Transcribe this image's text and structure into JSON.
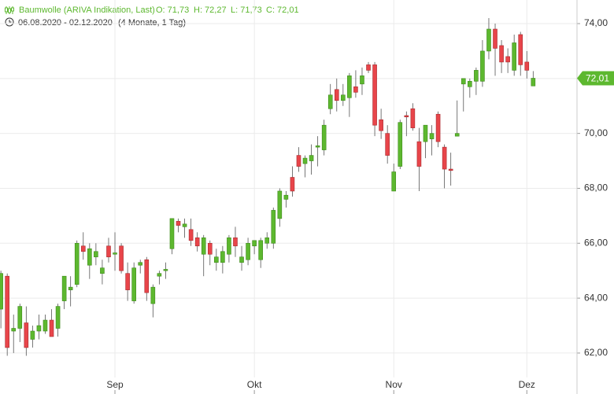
{
  "chart_data": {
    "type": "candlestick",
    "title": "Baumwolle (ARIVA Indikation, Last)",
    "ohlc_labels": [
      "O: 71,73",
      "H: 72,27",
      "L: 71,73",
      "C: 72,01"
    ],
    "date_range": "06.08.2020 - 02.12.2020",
    "period": "(4 Monate, 1 Tag)",
    "categories": [
      null,
      null,
      null,
      null,
      null,
      null,
      null,
      null,
      null,
      null,
      null,
      null,
      null,
      null,
      null,
      null,
      null,
      null,
      "Sep",
      null,
      null,
      null,
      null,
      null,
      null,
      null,
      null,
      null,
      null,
      null,
      null,
      null,
      null,
      null,
      null,
      null,
      null,
      null,
      null,
      null,
      "Okt",
      null,
      null,
      null,
      null,
      null,
      null,
      null,
      null,
      null,
      null,
      null,
      null,
      null,
      null,
      null,
      null,
      null,
      null,
      null,
      null,
      null,
      "Nov",
      null,
      null,
      null,
      null,
      null,
      null,
      null,
      null,
      null,
      null,
      null,
      null,
      null,
      null,
      null,
      null,
      null,
      null,
      null,
      null,
      "Dez",
      null
    ],
    "open": [
      63.6,
      64.8,
      62.8,
      62.9,
      63.1,
      62.5,
      62.8,
      62.8,
      63.2,
      62.9,
      63.9,
      64.3,
      64.5,
      65.9,
      65.2,
      65.5,
      64.9,
      65.9,
      65.6,
      65.9,
      64.9,
      63.9,
      65.2,
      65.4,
      63.8,
      64.8,
      65.0,
      65.8,
      66.8,
      66.6,
      66.5,
      66.2,
      65.6,
      66.0,
      65.3,
      65.3,
      65.6,
      66.2,
      65.3,
      65.4,
      65.9,
      65.4,
      66.0,
      66.0,
      66.9,
      67.6,
      68.4,
      69.2,
      68.9,
      69.0,
      69.5,
      69.4,
      70.9,
      71.6,
      71.2,
      71.3,
      71.7,
      71.8,
      72.5,
      72.5,
      70.5,
      70.0,
      67.9,
      68.8,
      70.65,
      70.9,
      69.7,
      69.7,
      69.8,
      70.7,
      69.5,
      68.7,
      69.9,
      71.8,
      71.7,
      71.9,
      71.9,
      73.0,
      73.8,
      73.2,
      72.8,
      72.3,
      73.6,
      72.6,
      71.73
    ],
    "high": [
      65.0,
      64.9,
      63.4,
      63.8,
      63.7,
      63.0,
      63.4,
      63.4,
      63.6,
      63.8,
      64.8,
      64.8,
      66.1,
      66.4,
      66.0,
      66.0,
      65.4,
      66.2,
      66.4,
      66.0,
      65.3,
      65.3,
      65.4,
      65.5,
      64.5,
      65.0,
      65.3,
      66.9,
      66.9,
      66.9,
      66.9,
      66.4,
      66.3,
      66.1,
      65.8,
      65.9,
      66.3,
      66.6,
      65.9,
      66.2,
      66.1,
      66.2,
      66.4,
      67.3,
      68.0,
      67.9,
      68.8,
      69.5,
      69.2,
      69.6,
      69.9,
      70.5,
      71.8,
      72.0,
      71.8,
      72.2,
      72.3,
      72.4,
      72.6,
      72.6,
      70.9,
      70.3,
      68.9,
      70.5,
      70.8,
      71.1,
      70.2,
      70.3,
      70.3,
      70.8,
      69.6,
      69.3,
      71.2,
      72.0,
      72.0,
      72.4,
      73.4,
      74.2,
      74.0,
      73.4,
      73.1,
      73.6,
      73.7,
      73.0,
      72.27
    ],
    "low": [
      62.9,
      61.9,
      62.0,
      62.4,
      61.9,
      62.2,
      62.5,
      62.7,
      62.6,
      62.6,
      63.6,
      63.7,
      64.4,
      65.4,
      64.7,
      65.2,
      64.5,
      65.3,
      65.0,
      64.9,
      63.9,
      63.8,
      64.9,
      63.9,
      63.3,
      64.5,
      64.7,
      65.6,
      66.4,
      66.2,
      65.9,
      65.7,
      64.8,
      65.2,
      65.0,
      64.9,
      65.3,
      65.5,
      65.0,
      65.2,
      65.6,
      65.1,
      65.8,
      65.8,
      66.6,
      67.3,
      67.7,
      68.6,
      68.4,
      68.5,
      68.8,
      69.2,
      70.7,
      70.8,
      71.0,
      70.6,
      71.3,
      71.4,
      72.2,
      69.9,
      69.8,
      68.9,
      67.9,
      68.7,
      69.9,
      70.1,
      67.9,
      69.1,
      69.2,
      69.5,
      68.0,
      68.1,
      69.9,
      70.8,
      71.3,
      71.4,
      71.7,
      72.7,
      72.1,
      72.2,
      72.2,
      72.1,
      72.1,
      72.0,
      71.73
    ],
    "close": [
      64.9,
      62.2,
      62.9,
      63.7,
      62.2,
      62.8,
      63.0,
      63.2,
      62.6,
      63.7,
      64.8,
      64.4,
      66.0,
      65.7,
      65.8,
      65.7,
      65.1,
      65.5,
      65.65,
      65.0,
      64.3,
      65.1,
      65.3,
      64.2,
      64.4,
      64.9,
      65.05,
      66.9,
      66.65,
      66.7,
      66.1,
      65.9,
      66.2,
      65.6,
      65.5,
      65.7,
      66.2,
      65.9,
      65.5,
      66.0,
      66.1,
      66.1,
      66.2,
      67.2,
      67.9,
      67.75,
      67.9,
      68.8,
      69.1,
      69.2,
      69.55,
      70.3,
      71.4,
      71.2,
      71.4,
      72.1,
      71.5,
      72.1,
      72.3,
      70.3,
      70.1,
      69.2,
      68.6,
      70.4,
      70.6,
      70.2,
      68.8,
      70.3,
      70.0,
      69.7,
      68.7,
      68.65,
      70.0,
      72.0,
      71.9,
      72.3,
      73.0,
      73.8,
      73.1,
      72.6,
      72.6,
      73.3,
      72.5,
      72.3,
      72.01
    ],
    "up_color": "#5db82f",
    "down_color": "#e8454a",
    "last_price": {
      "value": 72.01,
      "label": "72,01"
    },
    "ylim": [
      61.11,
      74.86
    ],
    "yticks": [
      {
        "value": 62,
        "label": "62,00"
      },
      {
        "value": 64,
        "label": "64,00"
      },
      {
        "value": 66,
        "label": "66,00"
      },
      {
        "value": 68,
        "label": "68,00"
      },
      {
        "value": 70,
        "label": "70,00"
      },
      {
        "value": 72,
        "label": "72,00"
      },
      {
        "value": 74,
        "label": "74,00"
      }
    ],
    "grid": true
  }
}
